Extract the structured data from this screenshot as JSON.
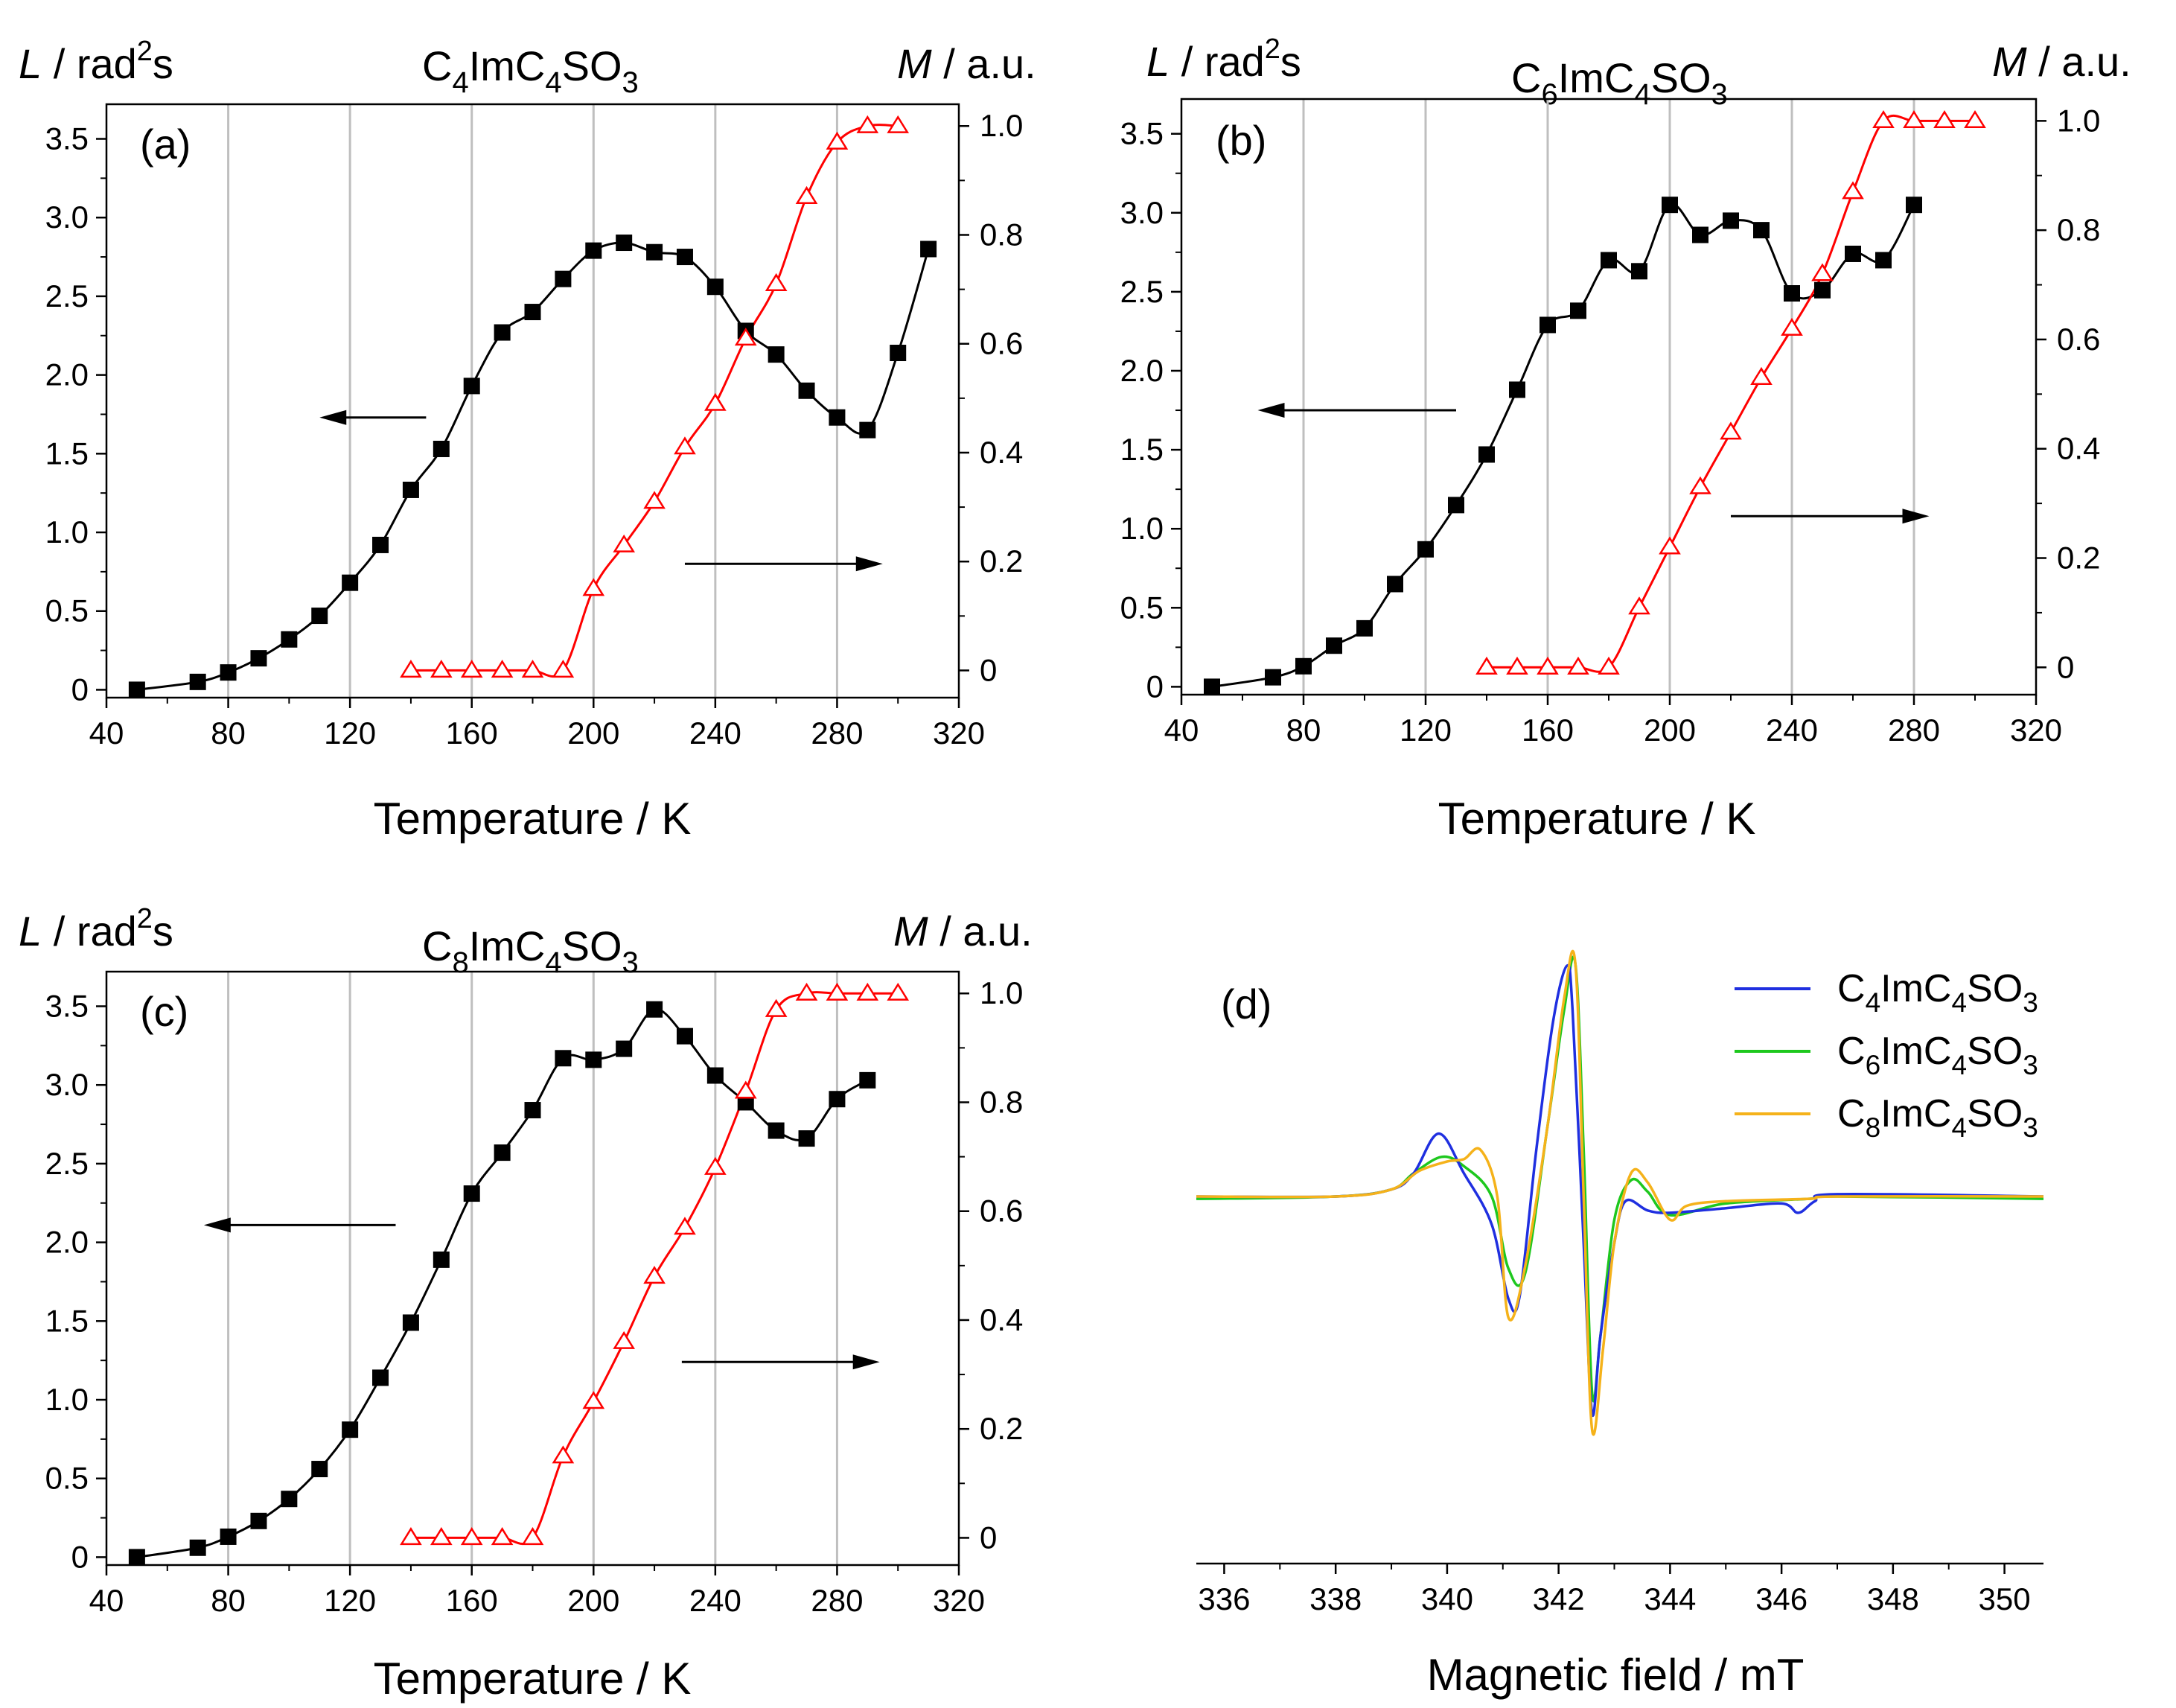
{
  "colors": {
    "left_series": "#000000",
    "right_series": "#ff0000",
    "grid": "#bfbfbf",
    "d_c4": "#1f2fe0",
    "d_c6": "#1ec81e",
    "d_c8": "#f5b21a"
  },
  "chart_data": [
    {
      "type": "line",
      "panel_label": "(a)",
      "title": {
        "main": "C",
        "s1": "4",
        "m1": "ImC",
        "s2": "4",
        "m2": "SO",
        "s3": "3"
      },
      "ylabel_left": {
        "italic": "L",
        "pre": " / rad",
        "sup": "2",
        "post": "s"
      },
      "ylabel_right": {
        "italic": "M",
        "rest": " / a.u."
      },
      "xlabel": "Temperature / K",
      "xlim": [
        40,
        320
      ],
      "ylim_left": [
        -0.05,
        3.72
      ],
      "ylim_right": [
        -0.05,
        1.04
      ],
      "xticks": [
        "40",
        "80",
        "120",
        "160",
        "200",
        "240",
        "280",
        "320"
      ],
      "yticks_left": [
        "0",
        "0.5",
        "1.0",
        "1.5",
        "2.0",
        "2.5",
        "3.0",
        "3.5"
      ],
      "yticks_right": [
        "0",
        "0.2",
        "0.4",
        "0.6",
        "0.8",
        "1.0"
      ],
      "grid_x": [
        80,
        120,
        160,
        200,
        240,
        280
      ],
      "series": [
        {
          "name": "L",
          "axis": "left",
          "marker": "square",
          "x": [
            50,
            70,
            80,
            90,
            100,
            110,
            120,
            130,
            140,
            150,
            160,
            170,
            180,
            190,
            200,
            210,
            220,
            230,
            240,
            250,
            260,
            270,
            280,
            290,
            300,
            310
          ],
          "y": [
            0.0,
            0.05,
            0.11,
            0.2,
            0.32,
            0.47,
            0.68,
            0.92,
            1.27,
            1.53,
            1.93,
            2.27,
            2.4,
            2.61,
            2.79,
            2.84,
            2.78,
            2.75,
            2.56,
            2.28,
            2.13,
            1.9,
            1.73,
            1.65,
            2.14,
            2.8
          ]
        },
        {
          "name": "M",
          "axis": "right",
          "marker": "triangle",
          "x": [
            140,
            150,
            160,
            170,
            180,
            190,
            200,
            210,
            220,
            230,
            240,
            250,
            260,
            270,
            280,
            290,
            300
          ],
          "y": [
            0.0,
            0.0,
            0.0,
            0.0,
            0.0,
            0.0,
            0.15,
            0.23,
            0.31,
            0.41,
            0.49,
            0.61,
            0.71,
            0.87,
            0.97,
            1.0,
            1.0
          ]
        }
      ],
      "arrows": [
        {
          "dir": "left",
          "x_from": 145,
          "x_to": 110,
          "y_left": 1.73
        },
        {
          "dir": "right",
          "x_from": 230,
          "x_to": 295,
          "y_left": 0.8
        }
      ]
    },
    {
      "type": "line",
      "panel_label": "(b)",
      "title": {
        "main": "C",
        "s1": "6",
        "m1": "ImC",
        "s2": "4",
        "m2": "SO",
        "s3": "3"
      },
      "ylabel_left": {
        "italic": "L",
        "pre": " / rad",
        "sup": "2",
        "post": "s"
      },
      "ylabel_right": {
        "italic": "M",
        "rest": " / a.u."
      },
      "xlabel": "Temperature / K",
      "xlim": [
        40,
        320
      ],
      "ylim_left": [
        -0.05,
        3.72
      ],
      "ylim_right": [
        -0.05,
        1.04
      ],
      "xticks": [
        "40",
        "80",
        "120",
        "160",
        "200",
        "240",
        "280",
        "320"
      ],
      "yticks_left": [
        "0",
        "0.5",
        "1.0",
        "1.5",
        "2.0",
        "2.5",
        "3.0",
        "3.5"
      ],
      "yticks_right": [
        "0",
        "0.2",
        "0.4",
        "0.6",
        "0.8",
        "1.0"
      ],
      "grid_x": [
        80,
        120,
        160,
        200,
        240,
        280
      ],
      "series": [
        {
          "name": "L",
          "axis": "left",
          "marker": "square",
          "x": [
            50,
            70,
            80,
            90,
            100,
            110,
            120,
            130,
            140,
            150,
            160,
            170,
            180,
            190,
            200,
            210,
            220,
            230,
            240,
            250,
            260,
            270,
            280
          ],
          "y": [
            0.0,
            0.06,
            0.13,
            0.26,
            0.37,
            0.65,
            0.87,
            1.15,
            1.47,
            1.88,
            2.29,
            2.38,
            2.7,
            2.63,
            3.05,
            2.86,
            2.95,
            2.89,
            2.49,
            2.51,
            2.74,
            2.7,
            3.05
          ]
        },
        {
          "name": "M",
          "axis": "right",
          "marker": "triangle",
          "x": [
            140,
            150,
            160,
            170,
            180,
            190,
            200,
            210,
            220,
            230,
            240,
            250,
            260,
            270,
            280,
            290,
            300
          ],
          "y": [
            0.0,
            0.0,
            0.0,
            0.0,
            0.0,
            0.11,
            0.22,
            0.33,
            0.43,
            0.53,
            0.62,
            0.72,
            0.87,
            1.0,
            1.0,
            1.0,
            1.0
          ]
        }
      ],
      "arrows": [
        {
          "dir": "left",
          "x_from": 130,
          "x_to": 65,
          "y_left": 1.75
        },
        {
          "dir": "right",
          "x_from": 220,
          "x_to": 285,
          "y_left": 1.08
        }
      ]
    },
    {
      "type": "line",
      "panel_label": "(c)",
      "title": {
        "main": "C",
        "s1": "8",
        "m1": "ImC",
        "s2": "4",
        "m2": "SO",
        "s3": "3"
      },
      "ylabel_left": {
        "italic": "L",
        "pre": " / rad",
        "sup": "2",
        "post": "s"
      },
      "ylabel_right": {
        "italic": "M",
        "rest": " / a.u."
      },
      "xlabel": "Temperature / K",
      "xlim": [
        40,
        320
      ],
      "ylim_left": [
        -0.05,
        3.72
      ],
      "ylim_right": [
        -0.05,
        1.04
      ],
      "xticks": [
        "40",
        "80",
        "120",
        "160",
        "200",
        "240",
        "280",
        "320"
      ],
      "yticks_left": [
        "0",
        "0.5",
        "1.0",
        "1.5",
        "2.0",
        "2.5",
        "3.0",
        "3.5"
      ],
      "yticks_right": [
        "0",
        "0.2",
        "0.4",
        "0.6",
        "0.8",
        "1.0"
      ],
      "grid_x": [
        80,
        120,
        160,
        200,
        240,
        280
      ],
      "series": [
        {
          "name": "L",
          "axis": "left",
          "marker": "square",
          "x": [
            50,
            70,
            80,
            90,
            100,
            110,
            120,
            130,
            140,
            150,
            160,
            170,
            180,
            190,
            200,
            210,
            220,
            230,
            240,
            250,
            260,
            270,
            280,
            290
          ],
          "y": [
            0.0,
            0.06,
            0.13,
            0.23,
            0.37,
            0.56,
            0.81,
            1.14,
            1.49,
            1.89,
            2.31,
            2.57,
            2.84,
            3.17,
            3.16,
            3.23,
            3.48,
            3.31,
            3.06,
            2.89,
            2.71,
            2.66,
            2.91,
            3.03
          ]
        },
        {
          "name": "M",
          "axis": "right",
          "marker": "triangle",
          "x": [
            140,
            150,
            160,
            170,
            180,
            190,
            200,
            210,
            220,
            230,
            240,
            250,
            260,
            270,
            280,
            290,
            300
          ],
          "y": [
            0.0,
            0.0,
            0.0,
            0.0,
            0.0,
            0.15,
            0.25,
            0.36,
            0.48,
            0.57,
            0.68,
            0.82,
            0.97,
            1.0,
            1.0,
            1.0,
            1.0
          ]
        }
      ],
      "arrows": [
        {
          "dir": "left",
          "x_from": 135,
          "x_to": 72,
          "y_left": 2.11
        },
        {
          "dir": "right",
          "x_from": 229,
          "x_to": 294,
          "y_left": 1.24
        }
      ]
    },
    {
      "type": "line",
      "panel_label": "(d)",
      "xlabel": "Magnetic field / mT",
      "xlim": [
        335.5,
        350.7
      ],
      "ylim": [
        -1.0,
        1.0
      ],
      "xticks": [
        "336",
        "338",
        "340",
        "342",
        "344",
        "346",
        "348",
        "350"
      ],
      "legend_position": "top-right",
      "series": [
        {
          "name": "C4ImC4SO3",
          "label": {
            "a": "C",
            "s1": "4",
            "b": "ImC",
            "s2": "4",
            "c": "SO",
            "s3": "3"
          },
          "x": [
            335.5,
            338.0,
            339.0,
            339.4,
            339.85,
            340.3,
            340.8,
            341.1,
            341.3,
            341.6,
            341.9,
            342.15,
            342.25,
            342.45,
            342.6,
            342.75,
            343.0,
            343.2,
            343.6,
            344.0,
            345.0,
            346.0,
            346.3,
            346.6,
            347.0,
            350.7
          ],
          "y": [
            0.0,
            0.0,
            0.03,
            0.1,
            0.27,
            0.1,
            -0.12,
            -0.44,
            -0.43,
            0.2,
            0.75,
            0.99,
            0.8,
            -0.2,
            -0.93,
            -0.6,
            -0.2,
            -0.02,
            -0.06,
            -0.07,
            -0.05,
            -0.03,
            -0.07,
            -0.02,
            0.01,
            0.0
          ]
        },
        {
          "name": "C6ImC4SO3",
          "label": {
            "a": "C",
            "s1": "6",
            "b": "ImC",
            "s2": "4",
            "c": "SO",
            "s3": "3"
          },
          "x": [
            335.5,
            338.0,
            339.0,
            339.4,
            339.9,
            340.3,
            340.8,
            341.1,
            341.4,
            341.8,
            342.1,
            342.3,
            342.45,
            342.6,
            342.75,
            343.0,
            343.3,
            343.6,
            344.0,
            345.0,
            346.5,
            347.0,
            350.7
          ],
          "y": [
            -0.01,
            0.0,
            0.03,
            0.1,
            0.17,
            0.13,
            0.0,
            -0.31,
            -0.33,
            0.3,
            0.8,
            1.0,
            0.2,
            -0.84,
            -0.6,
            -0.1,
            0.07,
            0.02,
            -0.08,
            -0.03,
            -0.01,
            0.0,
            -0.01
          ]
        },
        {
          "name": "C8ImC4SO3",
          "label": {
            "a": "C",
            "s1": "8",
            "b": "ImC",
            "s2": "4",
            "c": "SO",
            "s3": "3"
          },
          "x": [
            335.5,
            338.0,
            339.0,
            339.5,
            340.0,
            340.3,
            340.6,
            340.9,
            341.1,
            341.4,
            341.8,
            342.1,
            342.3,
            342.45,
            342.6,
            342.8,
            343.0,
            343.3,
            343.6,
            344.0,
            344.3,
            345.0,
            346.5,
            347.0,
            350.7
          ],
          "y": [
            0.0,
            0.0,
            0.03,
            0.11,
            0.15,
            0.16,
            0.2,
            0.0,
            -0.52,
            -0.3,
            0.3,
            0.85,
            1.0,
            0.0,
            -1.0,
            -0.65,
            -0.2,
            0.1,
            0.06,
            -0.1,
            -0.04,
            -0.02,
            -0.01,
            0.0,
            0.0
          ]
        }
      ]
    }
  ]
}
